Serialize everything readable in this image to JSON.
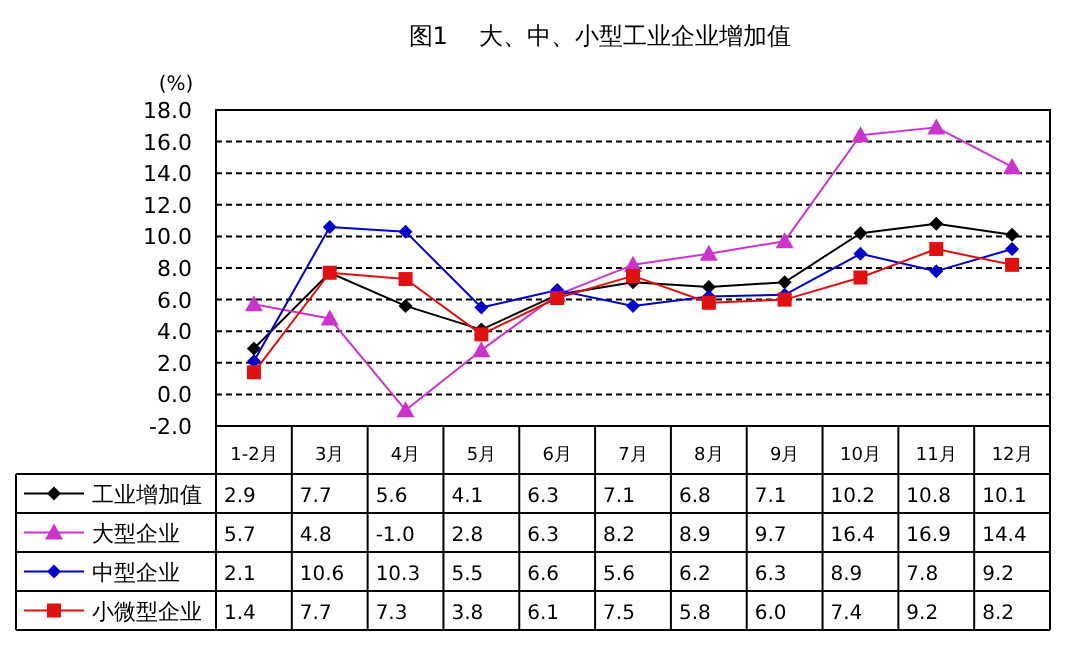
{
  "chart_data": {
    "type": "line",
    "title": "图1　 大、中、小型工业企业增加值",
    "ylabel": "(%)",
    "categories": [
      "1-2月",
      "3月",
      "4月",
      "5月",
      "6月",
      "7月",
      "8月",
      "9月",
      "10月",
      "11月",
      "12月"
    ],
    "series": [
      {
        "name": "工业增加值",
        "color": "#000000",
        "marker": "diamond",
        "values": [
          2.9,
          7.7,
          5.6,
          4.1,
          6.3,
          7.1,
          6.8,
          7.1,
          10.2,
          10.8,
          10.1
        ],
        "value_labels": [
          "2.9",
          "7.7",
          "5.6",
          "4.1",
          "6.3",
          "7.1",
          "6.8",
          "7.1",
          "10.2",
          "10.8",
          "10.1"
        ]
      },
      {
        "name": "大型企业",
        "color": "#cc33cc",
        "marker": "triangle",
        "values": [
          5.7,
          4.8,
          -1.0,
          2.8,
          6.3,
          8.2,
          8.9,
          9.7,
          16.4,
          16.9,
          14.4
        ],
        "value_labels": [
          "5.7",
          "4.8",
          "-1.0",
          "2.8",
          "6.3",
          "8.2",
          "8.9",
          "9.7",
          "16.4",
          "16.9",
          "14.4"
        ]
      },
      {
        "name": "中型企业",
        "color": "#0000cc",
        "marker": "diamond",
        "values": [
          2.1,
          10.6,
          10.3,
          5.5,
          6.6,
          5.6,
          6.2,
          6.3,
          8.9,
          7.8,
          9.2
        ],
        "value_labels": [
          "2.1",
          "10.6",
          "10.3",
          "5.5",
          "6.6",
          "5.6",
          "6.2",
          "6.3",
          "8.9",
          "7.8",
          "9.2"
        ]
      },
      {
        "name": "小微型企业",
        "color": "#e01010",
        "marker": "square",
        "values": [
          1.4,
          7.7,
          7.3,
          3.8,
          6.1,
          7.5,
          5.8,
          6.0,
          7.4,
          9.2,
          8.2
        ],
        "value_labels": [
          "1.4",
          "7.7",
          "7.3",
          "3.8",
          "6.1",
          "7.5",
          "5.8",
          "6.0",
          "7.4",
          "9.2",
          "8.2"
        ]
      }
    ],
    "ylim": [
      -2,
      18
    ],
    "yticks": [
      {
        "value": -2,
        "label": "-2.0"
      },
      {
        "value": 0,
        "label": "0.0"
      },
      {
        "value": 2,
        "label": "2.0"
      },
      {
        "value": 4,
        "label": "4.0"
      },
      {
        "value": 6,
        "label": "6.0"
      },
      {
        "value": 8,
        "label": "8.0"
      },
      {
        "value": 10,
        "label": "10.0"
      },
      {
        "value": 12,
        "label": "12.0"
      },
      {
        "value": 14,
        "label": "14.0"
      },
      {
        "value": 16,
        "label": "16.0"
      },
      {
        "value": 18,
        "label": "18.0"
      }
    ],
    "grid": "y",
    "legend": "bottom"
  }
}
